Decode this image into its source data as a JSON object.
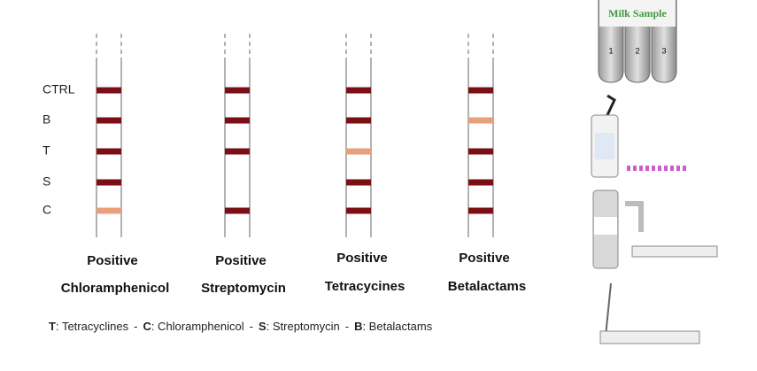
{
  "row_labels": [
    "CTRL",
    "B",
    "T",
    "S",
    "C"
  ],
  "strips": [
    {
      "status": "Positive",
      "name": "Chloramphenicol",
      "bands": [
        "#7a1015",
        "#7a1015",
        "#7a1015",
        "#7a1015",
        "#e8a07c"
      ]
    },
    {
      "status": "Positive",
      "name": "Streptomycin",
      "bands": [
        "#7a1015",
        "#7a1015",
        "#7a1015",
        null,
        "#7a1015"
      ]
    },
    {
      "status": "Positive",
      "name": "Tetracycines",
      "bands": [
        "#7a1015",
        "#7a1015",
        "#e8a07c",
        "#7a1015",
        "#7a1015"
      ]
    },
    {
      "status": "Positive",
      "name": "Betalactams",
      "bands": [
        "#7a1015",
        "#e8a07c",
        "#7a1015",
        "#7a1015",
        "#7a1015"
      ]
    }
  ],
  "legend": {
    "separator": "-",
    "items": [
      {
        "key": "T",
        "text": ": Tetracyclines"
      },
      {
        "key": "C",
        "text": ": Chloramphenicol"
      },
      {
        "key": "S",
        "text": ": Streptomycin"
      },
      {
        "key": "B",
        "text": ": Betalactams"
      }
    ]
  },
  "sample": {
    "title": "Milk Sample",
    "tubes": [
      "1",
      "2",
      "3"
    ]
  }
}
